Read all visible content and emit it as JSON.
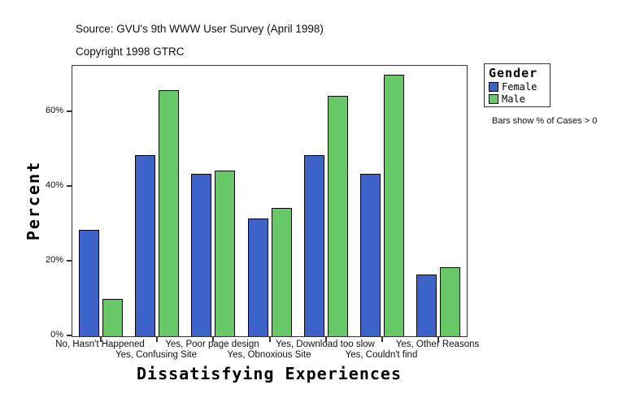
{
  "header": {
    "source_line": "Source: GVU's 9th WWW User Survey (April 1998)",
    "copyright_line": "Copyright 1998 GTRC"
  },
  "chart_data": {
    "type": "bar",
    "title": "Source: GVU's 9th WWW User Survey (April 1998)",
    "subtitle": "Copyright 1998 GTRC",
    "categories": [
      "No, Hasn't Happened",
      "Yes, Confusing Site",
      "Yes, Poor page design",
      "Yes, Obnoxious Site",
      "Yes, Download too slow",
      "Yes, Couldn't find",
      "Yes, Other Reasons"
    ],
    "series": [
      {
        "name": "Female",
        "color": "#3c64c8",
        "values": [
          28.5,
          48.5,
          43.5,
          31.5,
          48.5,
          43.5,
          16.5
        ]
      },
      {
        "name": "Male",
        "color": "#66c966",
        "values": [
          10,
          66,
          44.5,
          34.5,
          64.5,
          70,
          18.5
        ]
      }
    ],
    "xlabel": "Dissatisfying Experiences",
    "ylabel": "Percent",
    "ylim": [
      0,
      72.5
    ],
    "yticks": [
      0,
      20,
      40,
      60
    ],
    "ytick_labels": [
      "0%",
      "20%",
      "40%",
      "60%"
    ],
    "grid": false,
    "legend_position": "outside-top-right",
    "bar_border_color": "#000000"
  },
  "legend": {
    "title": "Gender",
    "items": [
      {
        "label": "Female",
        "color": "#3c64c8"
      },
      {
        "label": "Male",
        "color": "#66c966"
      }
    ]
  },
  "note": "Bars show % of Cases > 0"
}
